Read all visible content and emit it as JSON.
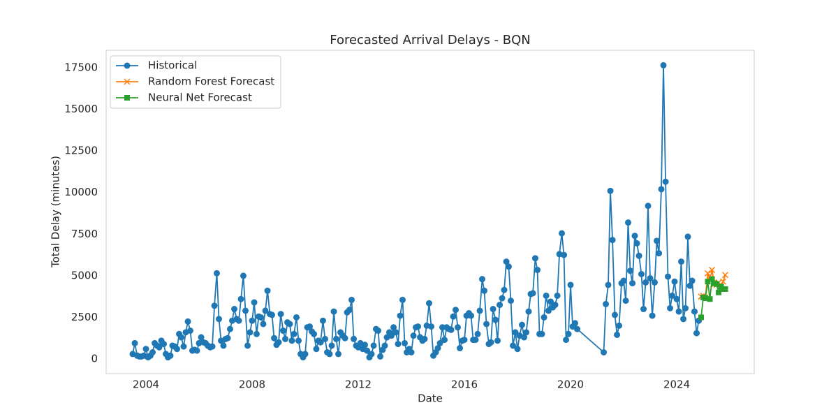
{
  "chart_data": {
    "type": "line",
    "title": "Forecasted Arrival Delays - BQN",
    "xlabel": "Date",
    "ylabel": "Total Delay (minutes)",
    "xlim": [
      2002.5,
      2026.92
    ],
    "xticks": [
      2004,
      2008,
      2012,
      2016,
      2020,
      2024
    ],
    "ylim": [
      -880,
      18550
    ],
    "yticks": [
      0,
      2500,
      5000,
      7500,
      10000,
      12500,
      15000,
      17500
    ],
    "grid": false,
    "legend": "upper left",
    "series": [
      {
        "name": "Historical",
        "color": "#1f77b4",
        "marker": "circle",
        "x": [
          2003.5,
          2003.58,
          2003.67,
          2003.75,
          2003.83,
          2003.92,
          2004,
          2004.08,
          2004.17,
          2004.25,
          2004.33,
          2004.42,
          2004.5,
          2004.58,
          2004.67,
          2004.75,
          2004.83,
          2004.92,
          2005,
          2005.08,
          2005.17,
          2005.25,
          2005.33,
          2005.42,
          2005.5,
          2005.58,
          2005.67,
          2005.75,
          2005.83,
          2005.92,
          2006,
          2006.08,
          2006.17,
          2006.25,
          2006.33,
          2006.42,
          2006.5,
          2006.58,
          2006.67,
          2006.75,
          2006.83,
          2006.92,
          2007,
          2007.08,
          2007.17,
          2007.25,
          2007.33,
          2007.42,
          2007.5,
          2007.58,
          2007.67,
          2007.75,
          2007.83,
          2007.92,
          2008,
          2008.08,
          2008.17,
          2008.25,
          2008.33,
          2008.42,
          2008.5,
          2008.58,
          2008.67,
          2008.75,
          2008.83,
          2008.92,
          2009,
          2009.08,
          2009.17,
          2009.25,
          2009.33,
          2009.42,
          2009.5,
          2009.58,
          2009.67,
          2009.75,
          2009.83,
          2009.92,
          2010,
          2010.08,
          2010.17,
          2010.25,
          2010.33,
          2010.42,
          2010.5,
          2010.58,
          2010.67,
          2010.75,
          2010.83,
          2010.92,
          2011,
          2011.08,
          2011.17,
          2011.25,
          2011.33,
          2011.42,
          2011.5,
          2011.58,
          2011.67,
          2011.75,
          2011.83,
          2011.92,
          2012,
          2012.08,
          2012.17,
          2012.25,
          2012.33,
          2012.42,
          2012.5,
          2012.58,
          2012.67,
          2012.75,
          2012.83,
          2012.92,
          2013,
          2013.08,
          2013.17,
          2013.25,
          2013.33,
          2013.42,
          2013.5,
          2013.58,
          2013.67,
          2013.75,
          2013.83,
          2013.92,
          2014,
          2014.08,
          2014.17,
          2014.25,
          2014.33,
          2014.42,
          2014.5,
          2014.58,
          2014.67,
          2014.75,
          2014.83,
          2014.92,
          2015,
          2015.08,
          2015.17,
          2015.25,
          2015.33,
          2015.42,
          2015.5,
          2015.58,
          2015.67,
          2015.75,
          2015.83,
          2015.92,
          2016,
          2016.08,
          2016.17,
          2016.25,
          2016.33,
          2016.42,
          2016.5,
          2016.58,
          2016.67,
          2016.75,
          2016.83,
          2016.92,
          2017,
          2017.08,
          2017.17,
          2017.25,
          2017.33,
          2017.42,
          2017.5,
          2017.58,
          2017.67,
          2017.75,
          2017.83,
          2017.92,
          2018,
          2018.08,
          2018.17,
          2018.25,
          2018.33,
          2018.42,
          2018.5,
          2018.58,
          2018.67,
          2018.75,
          2018.83,
          2018.92,
          2019,
          2019.08,
          2019.17,
          2019.25,
          2019.33,
          2019.42,
          2019.5,
          2019.58,
          2019.67,
          2019.75,
          2019.83,
          2019.92,
          2020,
          2020.08,
          2020.17,
          2020.25,
          2021.25,
          2021.33,
          2021.42,
          2021.5,
          2021.58,
          2021.67,
          2021.75,
          2021.83,
          2021.92,
          2022,
          2022.08,
          2022.17,
          2022.25,
          2022.33,
          2022.42,
          2022.5,
          2022.58,
          2022.67,
          2022.75,
          2022.83,
          2022.92,
          2023,
          2023.08,
          2023.17,
          2023.25,
          2023.33,
          2023.42,
          2023.5,
          2023.58,
          2023.67,
          2023.75,
          2023.83,
          2023.92,
          2024,
          2024.08,
          2024.17,
          2024.25,
          2024.33,
          2024.42,
          2024.5,
          2024.58,
          2024.67,
          2024.75,
          2024.83
        ],
        "values": [
          300,
          950,
          200,
          150,
          150,
          200,
          600,
          100,
          200,
          400,
          950,
          800,
          700,
          1100,
          900,
          300,
          100,
          200,
          800,
          750,
          600,
          1500,
          1300,
          750,
          1600,
          2250,
          1700,
          500,
          550,
          500,
          950,
          1300,
          1000,
          950,
          800,
          700,
          750,
          3200,
          5150,
          2400,
          1100,
          800,
          1200,
          1250,
          1800,
          2300,
          3000,
          2400,
          2300,
          3600,
          5000,
          2900,
          800,
          1600,
          2300,
          3400,
          1500,
          2550,
          2500,
          2100,
          2900,
          4100,
          2700,
          2650,
          1250,
          850,
          1000,
          2700,
          1700,
          1200,
          2200,
          2100,
          1100,
          1500,
          2500,
          1100,
          300,
          100,
          300,
          1900,
          1950,
          1650,
          1500,
          600,
          1100,
          1000,
          2300,
          1200,
          400,
          300,
          800,
          2850,
          1200,
          300,
          1600,
          1400,
          1250,
          2800,
          2950,
          3550,
          1200,
          800,
          700,
          950,
          600,
          850,
          500,
          100,
          300,
          800,
          1800,
          1700,
          150,
          550,
          800,
          1300,
          1600,
          1400,
          1900,
          1600,
          900,
          2600,
          3550,
          950,
          400,
          600,
          400,
          1400,
          1900,
          1950,
          1300,
          1100,
          1200,
          2000,
          3350,
          1950,
          200,
          400,
          650,
          950,
          1900,
          1150,
          1900,
          1800,
          1750,
          2550,
          2950,
          1900,
          650,
          1100,
          1150,
          2600,
          2750,
          2600,
          1150,
          1150,
          1500,
          2900,
          4800,
          4100,
          2100,
          900,
          1000,
          3000,
          2350,
          1100,
          3250,
          3650,
          4150,
          5850,
          5550,
          3500,
          800,
          1600,
          600,
          1400,
          2050,
          1300,
          1600,
          2850,
          3900,
          3950,
          6050,
          5350,
          1500,
          1500,
          2500,
          3800,
          2900,
          3450,
          3100,
          3250,
          3800,
          6300,
          7550,
          6250,
          1150,
          1500,
          4450,
          1950,
          2150,
          1800,
          400,
          3300,
          4450,
          10100,
          7150,
          2650,
          1450,
          2000,
          4550,
          4700,
          3500,
          8200,
          5300,
          4550,
          7400,
          6950,
          6200,
          5100,
          3000,
          4600,
          9200,
          4850,
          2600,
          4600,
          7100,
          6350,
          10200,
          17650,
          10650,
          4950,
          3050,
          3800,
          4650,
          3600,
          2850,
          5850,
          2400,
          3050,
          7350,
          4400,
          4700,
          2850,
          1550,
          2300
        ]
      },
      {
        "name": "Random Forest Forecast",
        "color": "#ff7f0e",
        "marker": "x",
        "x": [
          2024.92,
          2025,
          2025.08,
          2025.17,
          2025.25,
          2025.33,
          2025.42,
          2025.5,
          2025.58,
          2025.67,
          2025.75,
          2025.83
        ],
        "values": [
          3750,
          3800,
          3700,
          5150,
          4750,
          5350,
          4500,
          4450,
          4600,
          4350,
          4650,
          5050
        ]
      },
      {
        "name": "Neural Net Forecast",
        "color": "#2ca02c",
        "marker": "square",
        "x": [
          2024.92,
          2025,
          2025.08,
          2025.17,
          2025.25,
          2025.33,
          2025.42,
          2025.5,
          2025.58,
          2025.67,
          2025.75,
          2025.83
        ],
        "values": [
          2500,
          3700,
          3650,
          4650,
          3600,
          4800,
          4550,
          4500,
          4000,
          4350,
          4200,
          4200
        ]
      }
    ]
  }
}
